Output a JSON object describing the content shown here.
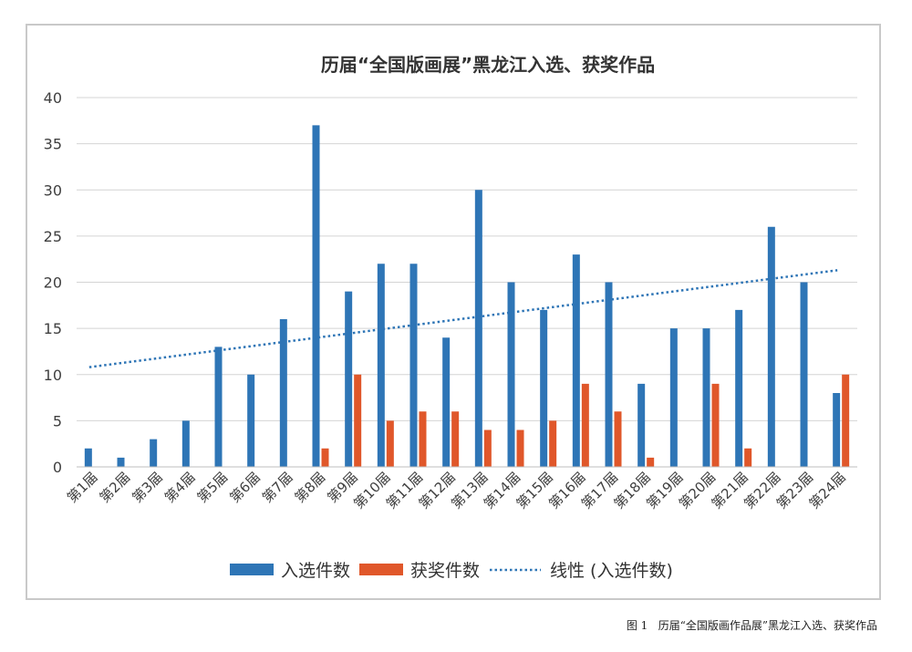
{
  "chart_data": {
    "type": "bar",
    "title": "历届“全国版画展”黑龙江入选、获奖作品",
    "xlabel": "",
    "ylabel": "",
    "ylim": [
      0,
      40
    ],
    "yticks": [
      0,
      5,
      10,
      15,
      20,
      25,
      30,
      35,
      40
    ],
    "grid": true,
    "legend_position": "bottom",
    "categories": [
      "第1届",
      "第2届",
      "第3届",
      "第4届",
      "第5届",
      "第6届",
      "第7届",
      "第8届",
      "第9届",
      "第10届",
      "第11届",
      "第12届",
      "第13届",
      "第14届",
      "第15届",
      "第16届",
      "第17届",
      "第18届",
      "第19届",
      "第20届",
      "第21届",
      "第22届",
      "第23届",
      "第24届"
    ],
    "series": [
      {
        "name": "入选件数",
        "color": "#2e75b6",
        "values": [
          2,
          1,
          3,
          5,
          13,
          10,
          16,
          37,
          19,
          22,
          22,
          14,
          30,
          20,
          17,
          23,
          20,
          9,
          15,
          15,
          17,
          26,
          20,
          8
        ]
      },
      {
        "name": "获奖件数",
        "color": "#e0572a",
        "values": [
          0,
          0,
          0,
          0,
          0,
          0,
          0,
          2,
          10,
          5,
          6,
          6,
          4,
          4,
          5,
          9,
          6,
          1,
          0,
          9,
          2,
          0,
          0,
          10
        ]
      }
    ],
    "trendline": {
      "name": "线性 (入选件数)",
      "color": "#2e75b6",
      "style": "dotted",
      "start": 10.8,
      "end": 21.3
    }
  },
  "caption": "图 1   历届“全国版画作品展”黑龙江入选、获奖作品"
}
